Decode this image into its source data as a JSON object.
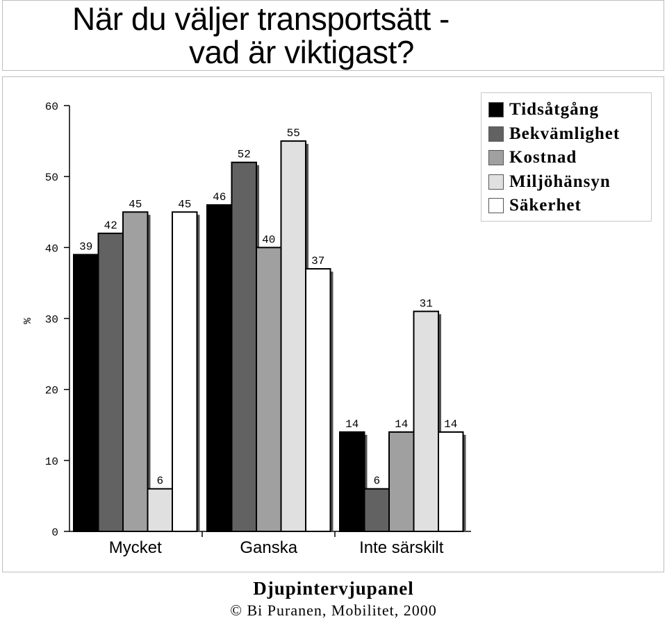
{
  "page": {
    "title_line1": "När du väljer transportsätt -",
    "title_line2": "vad är viktigast?",
    "footer_title": "Djupintervjupanel",
    "footer_credit": "© Bi Puranen, Mobilitet, 2000"
  },
  "chart_data": {
    "type": "bar",
    "title": "När du väljer transportsätt - vad är viktigast?",
    "xlabel": "",
    "ylabel": "%",
    "ylim": [
      0,
      60
    ],
    "yticks": [
      0,
      10,
      20,
      30,
      40,
      50,
      60
    ],
    "categories": [
      "Mycket",
      "Ganska",
      "Inte särskilt"
    ],
    "series": [
      {
        "name": "Tidsåtgång",
        "color": "#000000",
        "values": [
          39,
          46,
          14
        ]
      },
      {
        "name": "Bekvämlighet",
        "color": "#626262",
        "values": [
          42,
          52,
          6
        ]
      },
      {
        "name": "Kostnad",
        "color": "#a0a0a0",
        "values": [
          45,
          40,
          14
        ]
      },
      {
        "name": "Miljöhänsyn",
        "color": "#e0e0e0",
        "values": [
          6,
          55,
          31
        ]
      },
      {
        "name": "Säkerhet",
        "color": "#ffffff",
        "values": [
          45,
          37,
          14
        ]
      }
    ],
    "legend_position": "top-right",
    "grid": false
  }
}
